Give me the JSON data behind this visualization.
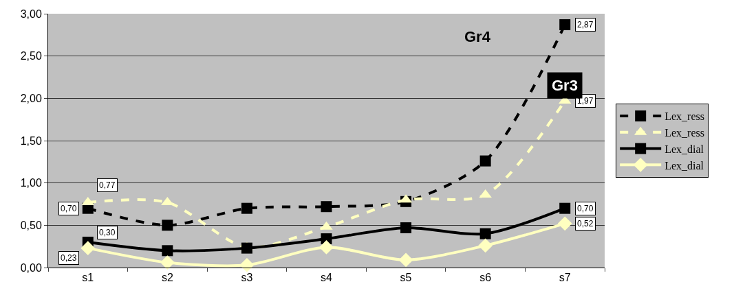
{
  "chart_data": {
    "type": "line",
    "categories": [
      "s1",
      "s2",
      "s3",
      "s4",
      "s5",
      "s6",
      "s7"
    ],
    "series": [
      {
        "name": "Lex_ress",
        "color": "#000000",
        "line_style": "dashed",
        "marker": "square",
        "values": [
          0.7,
          0.5,
          0.7,
          0.72,
          0.78,
          1.26,
          2.87
        ],
        "value_labels": [
          "0,70",
          null,
          null,
          null,
          null,
          null,
          "2,87"
        ]
      },
      {
        "name": "Lex_ress",
        "color": "#ffffc0",
        "line_style": "dashed",
        "marker": "triangle",
        "values": [
          0.77,
          0.77,
          0.24,
          0.48,
          0.8,
          0.86,
          1.97
        ],
        "value_labels": [
          "0,77",
          null,
          null,
          null,
          null,
          null,
          "1,97"
        ]
      },
      {
        "name": "Lex_dial",
        "color": "#000000",
        "line_style": "solid",
        "marker": "square",
        "values": [
          0.3,
          0.2,
          0.23,
          0.34,
          0.47,
          0.4,
          0.7
        ],
        "value_labels": [
          "0,30",
          null,
          null,
          null,
          null,
          null,
          "0,70"
        ]
      },
      {
        "name": "Lex_dial",
        "color": "#ffffc0",
        "line_style": "solid",
        "marker": "diamond",
        "values": [
          0.23,
          0.06,
          0.03,
          0.24,
          0.09,
          0.26,
          0.52
        ],
        "value_labels": [
          "0,23",
          null,
          null,
          null,
          null,
          null,
          "0,52"
        ]
      }
    ],
    "annotations": [
      "Gr4",
      "Gr3"
    ],
    "ylim": [
      0,
      3
    ],
    "yticks": [
      {
        "value": 0,
        "label": "0,00"
      },
      {
        "value": 0.5,
        "label": "0,50"
      },
      {
        "value": 1,
        "label": "1,00"
      },
      {
        "value": 1.5,
        "label": "1,50"
      },
      {
        "value": 2,
        "label": "2,00"
      },
      {
        "value": 2.5,
        "label": "2,50"
      },
      {
        "value": 3,
        "label": "3,00"
      }
    ],
    "grid": "y",
    "legend": "right"
  }
}
